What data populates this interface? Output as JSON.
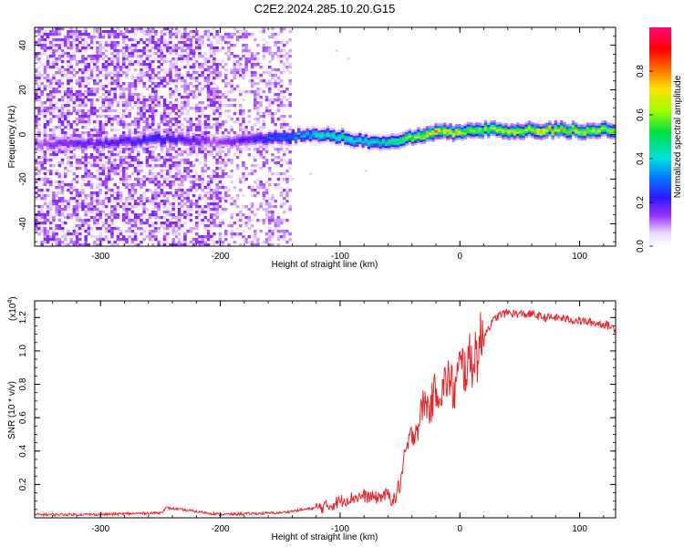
{
  "title": "C2E2.2024.285.10.20.G15",
  "chart_data": [
    {
      "type": "heatmap",
      "xlabel": "Height of straight line (km)",
      "ylabel": "Frequency (Hz)",
      "xlim": [
        -355,
        130
      ],
      "ylim": [
        -50,
        48
      ],
      "xticks": [
        -300,
        -200,
        -100,
        0,
        100
      ],
      "yticks": [
        -40,
        -20,
        0,
        20,
        40
      ],
      "colorbar": {
        "label": "Normalized spectral amplitude",
        "ticks": [
          0.0,
          0.2,
          0.4,
          0.6,
          0.8
        ],
        "range": [
          0,
          1
        ],
        "colormap": "rainbow (white-violet-blue-cyan-green-yellow-red-magenta)"
      },
      "signal_band": {
        "description": "Narrow Doppler band centred near 0 Hz; scattered noise below -140 km",
        "x": [
          -355,
          -300,
          -250,
          -200,
          -150,
          -120,
          -100,
          -80,
          -60,
          -40,
          -20,
          0,
          20,
          50,
          80,
          100,
          130
        ],
        "center_hz": [
          -4,
          -4,
          -2,
          -3,
          -1,
          0,
          -1,
          -3,
          -4,
          -1,
          1,
          1,
          2,
          2,
          2,
          2,
          2
        ],
        "amplitude": [
          0.15,
          0.2,
          0.25,
          0.15,
          0.3,
          0.45,
          0.5,
          0.45,
          0.5,
          0.65,
          0.8,
          0.7,
          0.65,
          0.7,
          0.75,
          0.7,
          0.65
        ]
      }
    },
    {
      "type": "line",
      "xlabel": "Height of straight line (km)",
      "ylabel": "SNR (10 * v/v)",
      "scale_label": "(x10",
      "scale_exp": "4",
      "xlim": [
        -355,
        130
      ],
      "ylim": [
        0,
        1.3
      ],
      "xticks": [
        -300,
        -200,
        -100,
        0,
        100
      ],
      "yticks": [
        0.2,
        0.4,
        0.6,
        0.8,
        1.0,
        1.2
      ],
      "color": "#e8262a",
      "series": [
        {
          "x": [
            -355,
            -300,
            -250,
            -245,
            -200,
            -150,
            -130,
            -110,
            -100,
            -90,
            -80,
            -70,
            -60,
            -55,
            -50,
            -45,
            -40,
            -35,
            -30,
            -25,
            -20,
            -15,
            -10,
            -5,
            0,
            5,
            10,
            15,
            20,
            25,
            30,
            35,
            40,
            50,
            60,
            70,
            80,
            90,
            100,
            110,
            120,
            125,
            130
          ],
          "values": [
            0.02,
            0.02,
            0.03,
            0.06,
            0.02,
            0.03,
            0.05,
            0.07,
            0.1,
            0.12,
            0.13,
            0.12,
            0.14,
            0.1,
            0.2,
            0.4,
            0.5,
            0.55,
            0.7,
            0.65,
            0.78,
            0.75,
            0.85,
            0.75,
            0.9,
            0.9,
            0.95,
            1.0,
            1.1,
            1.15,
            1.2,
            1.22,
            1.23,
            1.22,
            1.22,
            1.2,
            1.2,
            1.19,
            1.18,
            1.17,
            1.16,
            1.15,
            1.13
          ]
        }
      ]
    }
  ]
}
